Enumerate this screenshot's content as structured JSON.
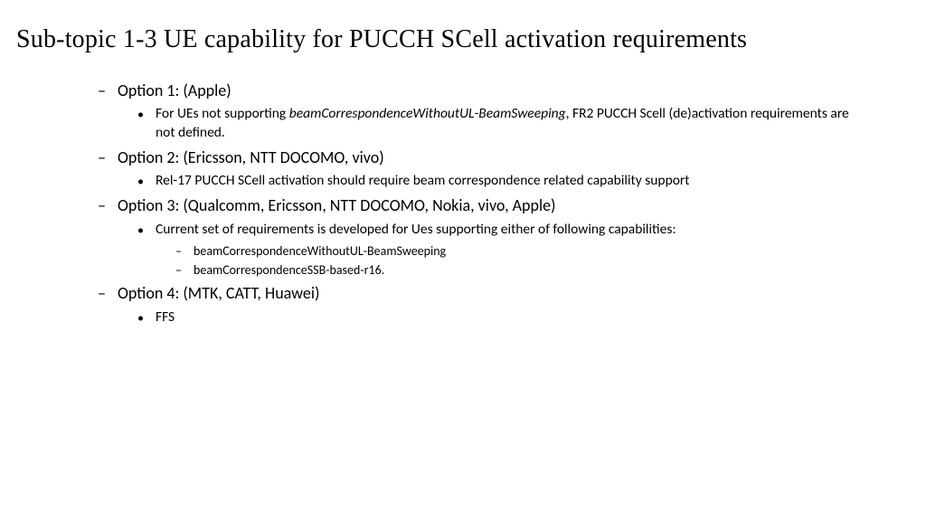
{
  "title": "Sub-topic 1-3 UE capability for PUCCH SCell activation requirements",
  "options": [
    {
      "label": "Option 1: (Apple)",
      "subs": [
        {
          "pre": "For UEs not supporting ",
          "italic": "beamCorrespondenceWithoutUL-BeamSweeping",
          "post": ", FR2 PUCCH Scell (de)activation requirements are not defined.",
          "subsubs": []
        }
      ]
    },
    {
      "label": "Option 2: (Ericsson, NTT DOCOMO, vivo)",
      "subs": [
        {
          "pre": "Rel-17 PUCCH SCell activation should require beam correspondence related capability support",
          "italic": "",
          "post": "",
          "subsubs": []
        }
      ]
    },
    {
      "label": "Option 3: (Qualcomm, Ericsson, NTT DOCOMO, Nokia, vivo, Apple)",
      "subs": [
        {
          "pre": "Current set of requirements is developed for Ues supporting either of following capabilities:",
          "italic": "",
          "post": "",
          "subsubs": [
            "beamCorrespondenceWithoutUL-BeamSweeping",
            "beamCorrespondenceSSB-based-r16."
          ]
        }
      ]
    },
    {
      "label": "Option 4: (MTK, CATT, Huawei)",
      "subs": [
        {
          "pre": "FFS",
          "italic": "",
          "post": "",
          "subsubs": []
        }
      ]
    }
  ],
  "bullets": {
    "lvl1": "–",
    "lvl2": "•",
    "lvl3": "–"
  }
}
